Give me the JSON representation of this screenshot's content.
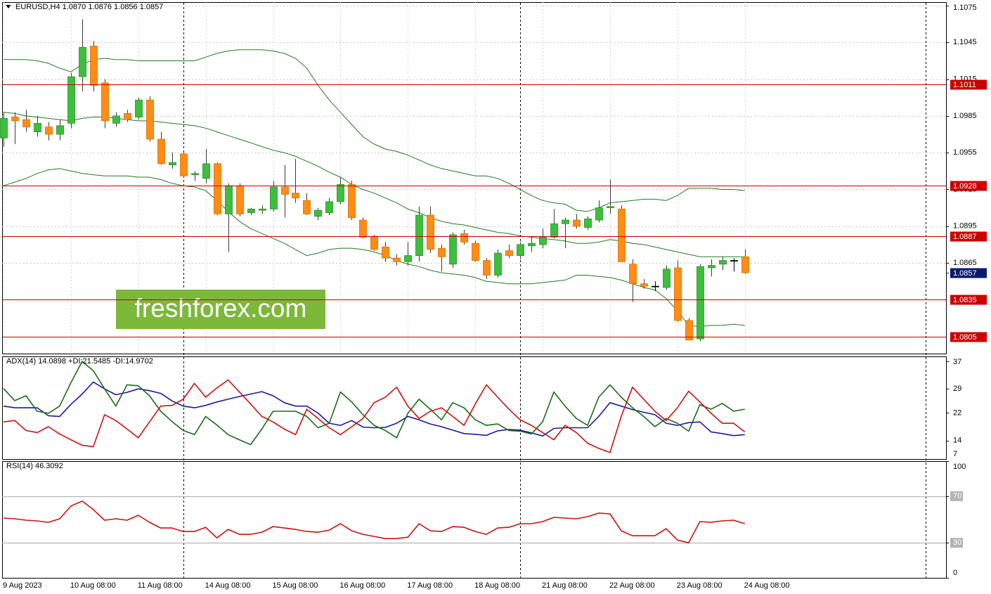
{
  "chart_data": [
    {
      "type": "candlestick",
      "title": "EURUSD,H4  1.0870 1.0876 1.0856 1.0857",
      "categories": [
        "9 Aug 2023",
        null,
        null,
        null,
        null,
        null,
        "10 Aug 08:00",
        null,
        null,
        null,
        null,
        null,
        "11 Aug 08:00",
        null,
        null,
        null,
        null,
        null,
        "14 Aug 08:00",
        null,
        null,
        null,
        null,
        null,
        "15 Aug 08:00",
        null,
        null,
        null,
        null,
        null,
        "16 Aug 08:00",
        null,
        null,
        null,
        null,
        null,
        "17 Aug 08:00",
        null,
        null,
        null,
        null,
        null,
        "18 Aug 08:00",
        null,
        null,
        null,
        null,
        null,
        "21 Aug 08:00",
        null,
        null,
        null,
        null,
        null,
        "22 Aug 08:00",
        null,
        null,
        null,
        null,
        null,
        "23 Aug 08:00",
        null,
        null,
        null,
        null,
        null,
        "24 Aug 08:00"
      ],
      "open": [
        1.0967,
        1.0984,
        1.0982,
        1.0972,
        1.0976,
        1.097,
        1.0979,
        1.1017,
        1.1042,
        1.1012,
        1.0979,
        1.0987,
        1.0984,
        1.0998,
        1.0966,
        1.0945,
        1.0954,
        1.0937,
        1.0934,
        1.0946,
        1.0905,
        1.0928,
        1.0906,
        1.0908,
        1.0909,
        1.0927,
        1.0922,
        1.0916,
        1.0903,
        1.0906,
        1.0915,
        1.0929,
        1.09,
        1.0886,
        1.0878,
        1.0869,
        1.0866,
        1.0871,
        1.0904,
        1.0877,
        1.0864,
        1.0889,
        1.0881,
        1.0867,
        1.0855,
        1.0875,
        1.0871,
        1.0879,
        1.088,
        1.0886,
        1.0897,
        1.09,
        1.0894,
        1.09,
        1.091,
        1.0909,
        1.0864,
        1.0848,
        1.0846,
        1.0845,
        1.0861,
        1.0818,
        1.0803,
        1.0861,
        1.0864,
        1.0867,
        1.087
      ],
      "high": [
        1.0988,
        1.0988,
        1.099,
        1.0985,
        1.098,
        1.0982,
        1.102,
        1.1064,
        1.1046,
        1.1015,
        1.0988,
        1.099,
        1.1,
        1.1001,
        1.0972,
        1.0955,
        1.0956,
        1.094,
        1.0958,
        1.0947,
        1.093,
        1.093,
        1.091,
        1.0912,
        1.0932,
        1.0945,
        1.095,
        1.0922,
        1.091,
        1.0918,
        1.0935,
        1.0932,
        1.0902,
        1.0888,
        1.0882,
        1.0872,
        1.0882,
        1.0911,
        1.0911,
        1.088,
        1.089,
        1.0892,
        1.0883,
        1.0869,
        1.0876,
        1.088,
        1.0882,
        1.0886,
        1.0893,
        1.0909,
        1.0902,
        1.0905,
        1.0903,
        1.0916,
        1.0933,
        1.0912,
        1.0868,
        1.0852,
        1.085,
        1.0863,
        1.0867,
        1.082,
        1.0864,
        1.0868,
        1.087,
        1.0869,
        1.0876
      ],
      "low": [
        1.096,
        1.0962,
        1.0972,
        1.0968,
        1.0965,
        1.0965,
        1.0975,
        1.1005,
        1.1005,
        1.0975,
        1.0976,
        1.098,
        1.0982,
        1.0964,
        1.0945,
        1.0942,
        1.0935,
        1.0932,
        1.093,
        1.0904,
        1.0874,
        1.0903,
        1.0904,
        1.0905,
        1.0907,
        1.0902,
        1.0914,
        1.0904,
        1.09,
        1.0904,
        1.0913,
        1.09,
        1.0885,
        1.0875,
        1.0866,
        1.0863,
        1.0863,
        1.0866,
        1.0873,
        1.0858,
        1.0861,
        1.088,
        1.0866,
        1.0852,
        1.0853,
        1.0869,
        1.0868,
        1.0874,
        1.0877,
        1.0885,
        1.0877,
        1.0893,
        1.0892,
        1.0898,
        1.0905,
        1.0866,
        1.0833,
        1.0844,
        1.0842,
        1.0843,
        1.0817,
        1.0802,
        1.0801,
        1.0854,
        1.0859,
        1.0858,
        1.0856
      ],
      "close": [
        1.0983,
        1.0981,
        1.0976,
        1.0979,
        1.097,
        1.0977,
        1.1017,
        1.1041,
        1.101,
        1.0981,
        1.0985,
        1.0982,
        1.0998,
        1.0966,
        1.0946,
        1.0947,
        1.0936,
        1.0938,
        1.0946,
        1.0905,
        1.0928,
        1.0905,
        1.0909,
        1.0909,
        1.0927,
        1.0921,
        1.0918,
        1.0905,
        1.0908,
        1.0915,
        1.0929,
        1.0902,
        1.0886,
        1.0876,
        1.0869,
        1.0866,
        1.0871,
        1.0904,
        1.0876,
        1.087,
        1.0888,
        1.0882,
        1.0867,
        1.0855,
        1.0873,
        1.0871,
        1.088,
        1.0881,
        1.0886,
        1.0897,
        1.09,
        1.0895,
        1.0901,
        1.091,
        1.0911,
        1.0866,
        1.0848,
        1.0846,
        1.0846,
        1.086,
        1.0818,
        1.0802,
        1.0862,
        1.0863,
        1.0867,
        1.0867,
        1.0857
      ],
      "up_color": "#3cbf3c",
      "down_color": "#ff8c14",
      "bands": [
        {
          "color": "#237a23",
          "values": [
            1.1031,
            1.1031,
            1.1031,
            1.103,
            1.1028,
            1.1024,
            1.1021,
            1.1027,
            1.1031,
            1.1032,
            1.1031,
            1.1031,
            1.103,
            1.103,
            1.103,
            1.103,
            1.103,
            1.103,
            1.1033,
            1.1036,
            1.1038,
            1.1039,
            1.1039,
            1.1039,
            1.1038,
            1.1036,
            1.1032,
            1.1024,
            1.101,
            1.0998,
            1.0988,
            1.0978,
            1.0968,
            1.0962,
            1.0958,
            1.0956,
            1.0953,
            1.0949,
            1.0945,
            1.0942,
            1.094,
            1.0938,
            1.0936,
            1.0936,
            1.0934,
            1.093,
            1.0925,
            1.092,
            1.0916,
            1.0914,
            1.0913,
            1.0908,
            1.0907,
            1.091,
            1.0914,
            1.0915,
            1.0916,
            1.0917,
            1.0917,
            1.0916,
            1.092,
            1.0926,
            1.0926,
            1.0926,
            1.0925,
            1.0925,
            1.0924
          ]
        },
        {
          "color": "#237a23",
          "values": [
            1.0988,
            1.0987,
            1.0985,
            1.0984,
            1.0983,
            1.0982,
            1.0981,
            1.0983,
            1.0984,
            1.0984,
            1.0983,
            1.0982,
            1.0981,
            1.0981,
            1.098,
            1.0979,
            1.0978,
            1.0977,
            1.0975,
            1.0972,
            1.0969,
            1.0966,
            1.0963,
            1.096,
            1.0957,
            1.0955,
            1.0952,
            1.0948,
            1.0944,
            1.0939,
            1.0935,
            1.0929,
            1.0925,
            1.0922,
            1.0918,
            1.0914,
            1.0909,
            1.0906,
            1.0902,
            1.0899,
            1.0897,
            1.0896,
            1.0894,
            1.0892,
            1.089,
            1.0889,
            1.0887,
            1.0886,
            1.0885,
            1.0884,
            1.0883,
            1.0881,
            1.0881,
            1.0882,
            1.0884,
            1.0883,
            1.0881,
            1.088,
            1.0878,
            1.0876,
            1.0874,
            1.0872,
            1.087,
            1.087,
            1.087,
            1.087,
            1.087
          ]
        },
        {
          "color": "#237a23",
          "values": [
            1.0928,
            1.0931,
            1.0934,
            1.0938,
            1.0941,
            1.0942,
            1.094,
            1.0938,
            1.0937,
            1.0936,
            1.0936,
            1.0936,
            1.0935,
            1.0935,
            1.0933,
            1.093,
            1.0928,
            1.0927,
            1.0924,
            1.0916,
            1.0907,
            1.0899,
            1.0893,
            1.0889,
            1.0885,
            1.0881,
            1.0876,
            1.0871,
            1.0873,
            1.0876,
            1.0877,
            1.0877,
            1.0876,
            1.0874,
            1.0871,
            1.0867,
            1.0864,
            1.0862,
            1.0859,
            1.0857,
            1.0856,
            1.0855,
            1.0853,
            1.085,
            1.0849,
            1.0848,
            1.0848,
            1.0848,
            1.0849,
            1.085,
            1.0851,
            1.0855,
            1.0855,
            1.0854,
            1.0853,
            1.0851,
            1.0848,
            1.0845,
            1.0843,
            1.0836,
            1.0826,
            1.0814,
            1.0813,
            1.0814,
            1.0814,
            1.0815,
            1.0814
          ]
        }
      ],
      "ylim": [
        1.0791,
        1.10779
      ],
      "yticks": [
        1.1075,
        1.1045,
        1.1015,
        1.0985,
        1.0955,
        1.0925,
        1.0895,
        1.0865
      ],
      "grid": true,
      "levels": [
        1.1011,
        1.0928,
        1.0887,
        1.0835,
        1.0805
      ],
      "level_color": "#cc0000",
      "current_price": 1.0857,
      "current_color": "#0a1a6e",
      "watermark": "freshforex.com"
    },
    {
      "type": "line",
      "title": "ADX(14) 14.0898 +DI:21.5485 -DI:14.9702",
      "series": [
        {
          "color": "#1a1aa6",
          "values": [
            24,
            23.5,
            23.5,
            23.5,
            21.2,
            21,
            24.5,
            27.5,
            31,
            29,
            27.3,
            28,
            29,
            28.5,
            27.7,
            25.5,
            24,
            23.5,
            24.2,
            25.2,
            26,
            26.8,
            27.5,
            28.2,
            27,
            25,
            24,
            24,
            22,
            19,
            18.4,
            19.8,
            17.9,
            17.7,
            17.8,
            19,
            21,
            20,
            18.8,
            18,
            17,
            16,
            15.8,
            15.5,
            16.8,
            17.2,
            17,
            16.2,
            15.3,
            17.5,
            17.7,
            17.7,
            17.7,
            21,
            25,
            24,
            23,
            22.2,
            21.5,
            19,
            18.4,
            19.2,
            19.4,
            16.5,
            16,
            15.4,
            15.7
          ]
        },
        {
          "color": "#1b6b1b",
          "values": [
            29.1,
            25.6,
            27,
            22.5,
            21.9,
            24,
            30.8,
            37,
            34.3,
            29,
            24,
            30.2,
            29.9,
            27,
            22.5,
            19.5,
            16.9,
            15.7,
            21,
            18.5,
            15.7,
            14.2,
            12.8,
            17.3,
            22.5,
            22.5,
            22.5,
            21,
            17.7,
            19,
            28.1,
            25.2,
            21.5,
            18.4,
            16.9,
            14.8,
            21.9,
            26,
            23.1,
            20,
            25,
            23.5,
            20,
            18.4,
            18.8,
            16.9,
            16.7,
            15.9,
            19.4,
            28.1,
            24,
            20.4,
            18.4,
            26.6,
            30.2,
            26.6,
            23.5,
            21,
            18,
            20.4,
            19,
            16.7,
            24.4,
            23.1,
            24.8,
            22.5,
            23.1
          ]
        },
        {
          "color": "#d01010",
          "values": [
            19.4,
            19.8,
            16.9,
            16.3,
            18,
            15.9,
            14.2,
            12.6,
            12.2,
            21.5,
            19.8,
            17.3,
            14.8,
            19.4,
            24,
            24.2,
            26,
            30.6,
            26.6,
            29.3,
            31.6,
            28.1,
            24.6,
            21,
            19.4,
            17.3,
            15.7,
            23.1,
            20.4,
            17.7,
            15.7,
            18,
            20.4,
            25,
            26.6,
            29.5,
            24,
            20.4,
            22.5,
            23.5,
            21,
            18.4,
            24.6,
            30.2,
            26.6,
            23.1,
            20,
            18.4,
            16.3,
            14.2,
            18.4,
            16.3,
            13.2,
            11.7,
            10.5,
            21,
            29.5,
            26,
            22.5,
            19.8,
            23.5,
            28.3,
            25.2,
            21.9,
            19,
            19,
            16.5
          ]
        }
      ],
      "ylim": [
        8.6,
        38.45
      ],
      "yticks": [
        37,
        29,
        22,
        14,
        7
      ]
    },
    {
      "type": "line",
      "title": "RSI(14) 46.3092",
      "series": [
        {
          "color": "#d01010",
          "values": [
            51.2,
            50.6,
            49.4,
            48.8,
            47.6,
            50.6,
            61.5,
            65.8,
            58.5,
            49.4,
            50.6,
            49.4,
            53.6,
            47.6,
            42.7,
            42.7,
            39.7,
            39.7,
            43.3,
            34.2,
            41.5,
            37.3,
            37.3,
            39.1,
            43.9,
            42.7,
            41.5,
            39.7,
            39.1,
            40.9,
            46.4,
            40.3,
            37.3,
            35.5,
            33.6,
            33.6,
            34.8,
            46.4,
            40.3,
            39.7,
            43.9,
            43.3,
            39.7,
            37.3,
            42.7,
            43.3,
            46.4,
            46.4,
            48.2,
            51.8,
            51.2,
            50.6,
            52.4,
            55.5,
            54.8,
            40.3,
            36.1,
            36.1,
            36.1,
            42.1,
            32.4,
            30,
            48.2,
            47.6,
            48.8,
            49.4,
            46.4
          ]
        }
      ],
      "ylim": [
        0,
        100
      ],
      "yticks": [
        100,
        70,
        30,
        0
      ],
      "levels": [
        70,
        30
      ],
      "level_color": "#b4b4b4"
    }
  ]
}
